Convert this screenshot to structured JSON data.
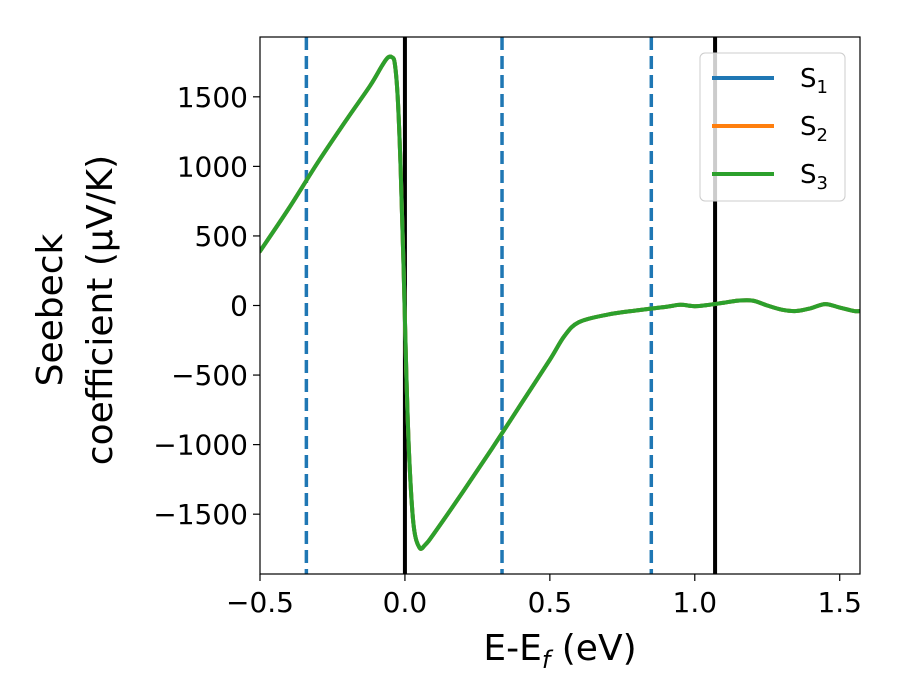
{
  "chart_data": {
    "type": "line",
    "xlabel": "E-E$_f$ (eV)",
    "xlabel_main": "E-E",
    "xlabel_sub": "f",
    "xlabel_tail": " (eV)",
    "ylabel_line1": "Seebeck",
    "ylabel_line2": "coefficient  (μV/K)",
    "xlim": [
      -0.5,
      1.57
    ],
    "ylim": [
      -1930,
      1930
    ],
    "xticks": [
      -0.5,
      0.0,
      0.5,
      1.0,
      1.5
    ],
    "xtick_labels": [
      "−0.5",
      "0.0",
      "0.5",
      "1.0",
      "1.5"
    ],
    "yticks": [
      -1500,
      -1000,
      -500,
      0,
      500,
      1000,
      1500
    ],
    "ytick_labels": [
      "−1500",
      "−1000",
      "−500",
      "0",
      "500",
      "1000",
      "1500"
    ],
    "grid": false,
    "legend_position": "top-right",
    "vertical_lines": [
      {
        "x": -0.34,
        "style": "dashed",
        "color": "#1f77b4"
      },
      {
        "x": 0.0,
        "style": "solid",
        "color": "#000000"
      },
      {
        "x": 0.335,
        "style": "dashed",
        "color": "#1f77b4"
      },
      {
        "x": 0.85,
        "style": "dashed",
        "color": "#1f77b4"
      },
      {
        "x": 1.07,
        "style": "solid",
        "color": "#000000"
      }
    ],
    "series": [
      {
        "name": "S1",
        "name_main": "S",
        "name_sub": "1",
        "color": "#1f77b4",
        "points": [
          [
            -0.5,
            390
          ],
          [
            -0.4,
            700
          ],
          [
            -0.3,
            1030
          ],
          [
            -0.2,
            1340
          ],
          [
            -0.12,
            1580
          ],
          [
            -0.08,
            1720
          ],
          [
            -0.06,
            1780
          ],
          [
            -0.045,
            1785
          ],
          [
            -0.035,
            1740
          ],
          [
            -0.025,
            1500
          ],
          [
            -0.015,
            1000
          ],
          [
            -0.005,
            300
          ],
          [
            0.005,
            -500
          ],
          [
            0.015,
            -1100
          ],
          [
            0.03,
            -1580
          ],
          [
            0.05,
            -1740
          ],
          [
            0.07,
            -1720
          ],
          [
            0.1,
            -1640
          ],
          [
            0.2,
            -1340
          ],
          [
            0.3,
            -1030
          ],
          [
            0.4,
            -710
          ],
          [
            0.5,
            -390
          ],
          [
            0.55,
            -220
          ],
          [
            0.6,
            -120
          ],
          [
            0.7,
            -65
          ],
          [
            0.8,
            -35
          ],
          [
            0.9,
            -10
          ],
          [
            0.95,
            5
          ],
          [
            1.0,
            -5
          ],
          [
            1.05,
            5
          ],
          [
            1.1,
            20
          ],
          [
            1.15,
            35
          ],
          [
            1.2,
            35
          ],
          [
            1.25,
            0
          ],
          [
            1.3,
            -30
          ],
          [
            1.35,
            -40
          ],
          [
            1.4,
            -20
          ],
          [
            1.45,
            10
          ],
          [
            1.5,
            -15
          ],
          [
            1.55,
            -40
          ],
          [
            1.57,
            -40
          ]
        ]
      },
      {
        "name": "S2",
        "name_main": "S",
        "name_sub": "2",
        "color": "#ff7f0e",
        "points": [
          [
            -0.5,
            390
          ],
          [
            -0.4,
            700
          ],
          [
            -0.3,
            1030
          ],
          [
            -0.2,
            1340
          ],
          [
            -0.12,
            1580
          ],
          [
            -0.08,
            1720
          ],
          [
            -0.06,
            1780
          ],
          [
            -0.045,
            1785
          ],
          [
            -0.035,
            1740
          ],
          [
            -0.025,
            1500
          ],
          [
            -0.015,
            1000
          ],
          [
            -0.005,
            300
          ],
          [
            0.005,
            -500
          ],
          [
            0.015,
            -1100
          ],
          [
            0.03,
            -1580
          ],
          [
            0.05,
            -1740
          ],
          [
            0.07,
            -1720
          ],
          [
            0.1,
            -1640
          ],
          [
            0.2,
            -1340
          ],
          [
            0.3,
            -1030
          ],
          [
            0.4,
            -710
          ],
          [
            0.5,
            -390
          ],
          [
            0.55,
            -220
          ],
          [
            0.6,
            -120
          ],
          [
            0.7,
            -65
          ],
          [
            0.8,
            -35
          ],
          [
            0.9,
            -10
          ],
          [
            0.95,
            5
          ],
          [
            1.0,
            -5
          ],
          [
            1.05,
            5
          ],
          [
            1.1,
            20
          ],
          [
            1.15,
            35
          ],
          [
            1.2,
            35
          ],
          [
            1.25,
            0
          ],
          [
            1.3,
            -30
          ],
          [
            1.35,
            -40
          ],
          [
            1.4,
            -20
          ],
          [
            1.45,
            10
          ],
          [
            1.5,
            -15
          ],
          [
            1.55,
            -40
          ],
          [
            1.57,
            -40
          ]
        ]
      },
      {
        "name": "S3",
        "name_main": "S",
        "name_sub": "3",
        "color": "#2ca02c",
        "points": [
          [
            -0.5,
            390
          ],
          [
            -0.4,
            700
          ],
          [
            -0.3,
            1030
          ],
          [
            -0.2,
            1340
          ],
          [
            -0.12,
            1580
          ],
          [
            -0.08,
            1720
          ],
          [
            -0.06,
            1780
          ],
          [
            -0.045,
            1785
          ],
          [
            -0.035,
            1740
          ],
          [
            -0.025,
            1500
          ],
          [
            -0.015,
            1000
          ],
          [
            -0.005,
            300
          ],
          [
            0.005,
            -500
          ],
          [
            0.015,
            -1100
          ],
          [
            0.03,
            -1580
          ],
          [
            0.05,
            -1740
          ],
          [
            0.07,
            -1720
          ],
          [
            0.1,
            -1640
          ],
          [
            0.2,
            -1340
          ],
          [
            0.3,
            -1030
          ],
          [
            0.4,
            -710
          ],
          [
            0.5,
            -390
          ],
          [
            0.55,
            -220
          ],
          [
            0.6,
            -120
          ],
          [
            0.7,
            -65
          ],
          [
            0.8,
            -35
          ],
          [
            0.9,
            -10
          ],
          [
            0.95,
            5
          ],
          [
            1.0,
            -5
          ],
          [
            1.05,
            5
          ],
          [
            1.1,
            20
          ],
          [
            1.15,
            35
          ],
          [
            1.2,
            35
          ],
          [
            1.25,
            0
          ],
          [
            1.3,
            -30
          ],
          [
            1.35,
            -40
          ],
          [
            1.4,
            -20
          ],
          [
            1.45,
            10
          ],
          [
            1.5,
            -15
          ],
          [
            1.55,
            -40
          ],
          [
            1.57,
            -40
          ]
        ]
      }
    ]
  }
}
